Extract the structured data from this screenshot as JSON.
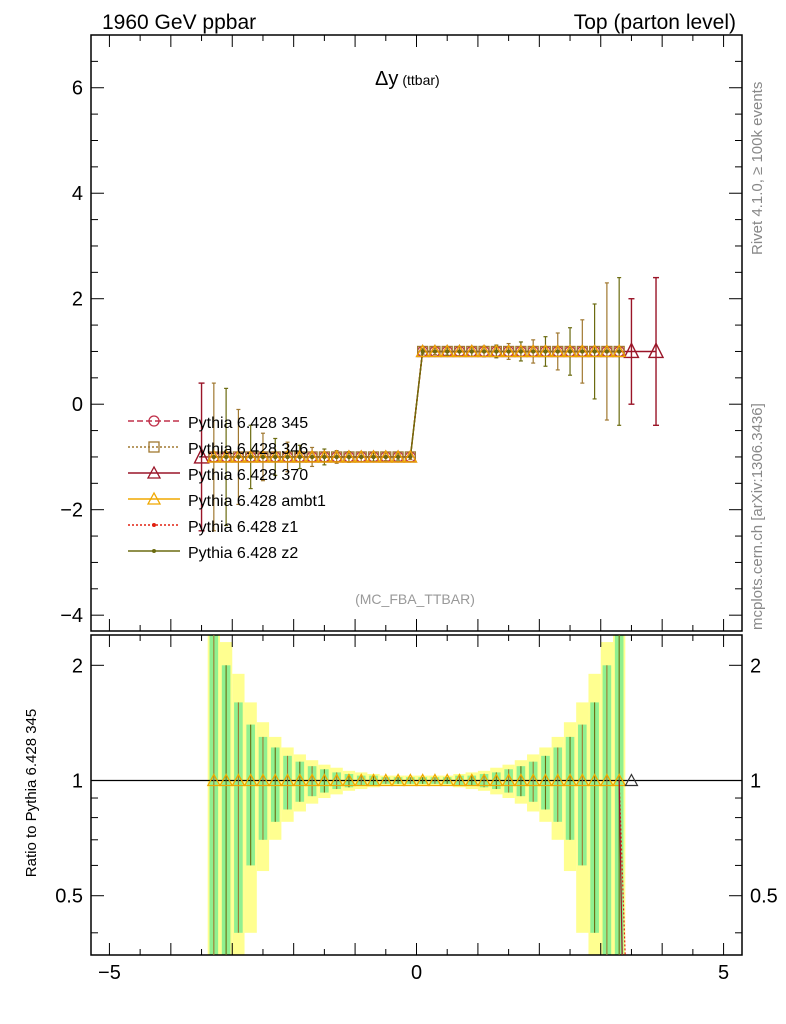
{
  "header": {
    "left": "1960 GeV ppbar",
    "right": "Top (parton level)"
  },
  "side": {
    "rivet": "Rivet 4.1.0, ≥ 100k events",
    "mcplots": "mcplots.cern.ch [arXiv:1306.3436]"
  },
  "ratio_ylabel": "Ratio to Pythia 6.428 345",
  "colors": {
    "p345": "#c0304a",
    "p346": "#a07830",
    "p370": "#9a1528",
    "ambt1": "#f0a800",
    "z1": "#e02010",
    "z2": "#6b6b10",
    "band_inner": "#90f090",
    "band_outer": "#ffff90"
  },
  "chart_data": [
    {
      "type": "line",
      "title_main": "Δy",
      "title_sub": "(ttbar)",
      "watermark": "(MC_FBA_TTBAR)",
      "xlim": [
        -5.3,
        5.3
      ],
      "ylim": [
        -4.3,
        7.0
      ],
      "xticks": [
        "−5",
        "0",
        "5"
      ],
      "yticks": [
        {
          "v": -4,
          "t": "−4"
        },
        {
          "v": -2,
          "t": "−2"
        },
        {
          "v": 0,
          "t": "0"
        },
        {
          "v": 2,
          "t": "2"
        },
        {
          "v": 4,
          "t": "4"
        },
        {
          "v": 6,
          "t": "6"
        }
      ],
      "x": [
        -3.3,
        -3.1,
        -2.9,
        -2.7,
        -2.5,
        -2.3,
        -2.1,
        -1.9,
        -1.7,
        -1.5,
        -1.3,
        -1.1,
        -0.9,
        -0.7,
        -0.5,
        -0.3,
        -0.1,
        0.1,
        0.3,
        0.5,
        0.7,
        0.9,
        1.1,
        1.3,
        1.5,
        1.7,
        1.9,
        2.1,
        2.3,
        2.5,
        2.7,
        2.9,
        3.1,
        3.3
      ],
      "series": [
        {
          "name": "Pythia 6.428 345",
          "color_key": "p345",
          "marker": "circle",
          "dash": "6,3",
          "values": [
            -1,
            -1,
            -1,
            -1,
            -1,
            -1,
            -1,
            -1,
            -1,
            -1,
            -1,
            -1,
            -1,
            -1,
            -1,
            -1,
            -1,
            1,
            1,
            1,
            1,
            1,
            1,
            1,
            1,
            1,
            1,
            1,
            1,
            1,
            1,
            1,
            1,
            1
          ]
        },
        {
          "name": "Pythia 6.428 346",
          "color_key": "p346",
          "marker": "square",
          "dash": "2,2",
          "values": [
            -1,
            -1,
            -1,
            -1,
            -1,
            -1,
            -1,
            -1,
            -1,
            -1,
            -1,
            -1,
            -1,
            -1,
            -1,
            -1,
            -1,
            1,
            1,
            1,
            1,
            1,
            1,
            1,
            1,
            1,
            1,
            1,
            1,
            1,
            1,
            1,
            1,
            1
          ]
        },
        {
          "name": "Pythia 6.428 370",
          "color_key": "p370",
          "marker": "triangle",
          "dash": "",
          "values": [
            -1,
            -1,
            -1,
            -1,
            -1,
            -1,
            -1,
            -1,
            -1,
            -1,
            -1,
            -1,
            -1,
            -1,
            -1,
            -1,
            -1,
            1,
            1,
            1,
            1,
            1,
            1,
            1,
            1,
            1,
            1,
            1,
            1,
            1,
            1,
            1,
            1,
            1
          ]
        },
        {
          "name": "Pythia 6.428 ambt1",
          "color_key": "ambt1",
          "marker": "triangle",
          "dash": "",
          "values": [
            -1,
            -1,
            -1,
            -1,
            -1,
            -1,
            -1,
            -1,
            -1,
            -1,
            -1,
            -1,
            -1,
            -1,
            -1,
            -1,
            -1,
            1,
            1,
            1,
            1,
            1,
            1,
            1,
            1,
            1,
            1,
            1,
            1,
            1,
            1,
            1,
            1,
            1
          ]
        },
        {
          "name": "Pythia 6.428 z1",
          "color_key": "z1",
          "marker": "dot",
          "dash": "2,2",
          "values": [
            -1,
            -1,
            -1,
            -1,
            -1,
            -1,
            -1,
            -1,
            -1,
            -1,
            -1,
            -1,
            -1,
            -1,
            -1,
            -1,
            -1,
            1,
            1,
            1,
            1,
            1,
            1,
            1,
            1,
            1,
            1,
            1,
            1,
            1,
            1,
            1,
            1,
            1
          ]
        },
        {
          "name": "Pythia 6.428 z2",
          "color_key": "z2",
          "marker": "dot",
          "dash": "",
          "values": [
            -1,
            -1,
            -1,
            -1,
            -1,
            -1,
            -1,
            -1,
            -1,
            -1,
            -1,
            -1,
            -1,
            -1,
            -1,
            -1,
            -1,
            1,
            1,
            1,
            1,
            1,
            1,
            1,
            1,
            1,
            1,
            1,
            1,
            1,
            1,
            1,
            1,
            1
          ]
        }
      ],
      "errors": [
        1.4,
        1.3,
        0.9,
        0.6,
        0.45,
        0.35,
        0.28,
        0.22,
        0.18,
        0.15,
        0.12,
        0.1,
        0.09,
        0.08,
        0.07,
        0.06,
        0.05,
        0.05,
        0.06,
        0.07,
        0.08,
        0.09,
        0.1,
        0.12,
        0.15,
        0.18,
        0.22,
        0.28,
        0.35,
        0.45,
        0.6,
        0.9,
        1.3,
        1.4
      ],
      "extra_370": [
        {
          "x": -3.5,
          "y": -1,
          "err": 1.4
        },
        {
          "x": 3.5,
          "y": 1,
          "err": 1.0
        },
        {
          "x": 3.9,
          "y": 1,
          "err": 1.4
        }
      ],
      "legend": "left, lower middle"
    },
    {
      "type": "line",
      "ylabel": "Ratio to Pythia 6.428 345",
      "xlim": [
        -5.3,
        5.3
      ],
      "ylim": [
        0.35,
        2.4
      ],
      "yticks": [
        {
          "v": 0.5,
          "t": "0.5"
        },
        {
          "v": 1,
          "t": "1"
        },
        {
          "v": 2,
          "t": "2"
        }
      ],
      "ratio_values": [
        1,
        1,
        1,
        1,
        1,
        1,
        1,
        1,
        1,
        1,
        1,
        1,
        1,
        1,
        1,
        1,
        1,
        1,
        1,
        1,
        1,
        1,
        1,
        1,
        1,
        1,
        1,
        1,
        1,
        1,
        1,
        1,
        1,
        1
      ],
      "band_inner": [
        1.4,
        1.0,
        0.6,
        0.4,
        0.3,
        0.22,
        0.16,
        0.12,
        0.09,
        0.07,
        0.05,
        0.04,
        0.03,
        0.03,
        0.02,
        0.02,
        0.02,
        0.02,
        0.02,
        0.02,
        0.03,
        0.03,
        0.04,
        0.05,
        0.07,
        0.09,
        0.12,
        0.16,
        0.22,
        0.3,
        0.4,
        0.6,
        1.0,
        1.4
      ],
      "band_outer": [
        1.6,
        1.3,
        0.9,
        0.6,
        0.42,
        0.3,
        0.22,
        0.17,
        0.13,
        0.1,
        0.08,
        0.06,
        0.05,
        0.04,
        0.03,
        0.03,
        0.03,
        0.03,
        0.03,
        0.03,
        0.04,
        0.05,
        0.06,
        0.08,
        0.1,
        0.13,
        0.17,
        0.22,
        0.3,
        0.42,
        0.6,
        0.9,
        1.3,
        1.6
      ]
    }
  ]
}
